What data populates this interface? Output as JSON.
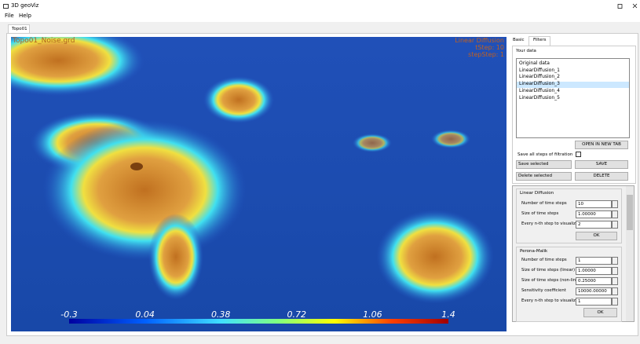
{
  "window": {
    "title": "3D geoViz"
  },
  "menu": [
    "File",
    "Help"
  ],
  "tabs": [
    "Topo01"
  ],
  "viewport": {
    "file_label": "Topo01_Noise.grd",
    "overlay": [
      "Linear Diffusion",
      "tStep: 10",
      "stepStep: 1"
    ],
    "colorbar_labels": [
      "-0.3",
      "0.04",
      "0.38",
      "0.72",
      "1.06",
      "1.4"
    ]
  },
  "panel": {
    "tabs": [
      "Basic",
      "Filters"
    ],
    "your_data": {
      "title": "Your data",
      "items": [
        "Original data",
        "LinearDiffusion_1",
        "LinearDiffusion_2",
        "LinearDiffusion_3",
        "LinearDiffusion_4",
        "LinearDiffusion_5"
      ],
      "open_button": "OPEN IN NEW TAB",
      "save_all_label": "Save all steps of filtration",
      "save_combo": "Save selected",
      "save_button": "SAVE",
      "delete_combo": "Delete selected",
      "delete_button": "DELETE"
    },
    "linear_diffusion": {
      "title": "Linear Diffusion",
      "rows": [
        [
          "Number of time steps",
          "10"
        ],
        [
          "Size of time steps",
          "1.00000"
        ],
        [
          "Every n-th step to visualize",
          "2"
        ]
      ],
      "ok": "OK"
    },
    "perona_malik": {
      "title": "Perona-Malik",
      "rows": [
        [
          "Number of time steps",
          "1"
        ],
        [
          "Size of time steps (linear)",
          "1.00000"
        ],
        [
          "Size of time steps (non-linear)",
          "0.25000"
        ],
        [
          "Sensitivity coefficient",
          "10000.00000"
        ],
        [
          "Every n-th step to visualize",
          "1"
        ]
      ],
      "ok": "OK"
    }
  }
}
